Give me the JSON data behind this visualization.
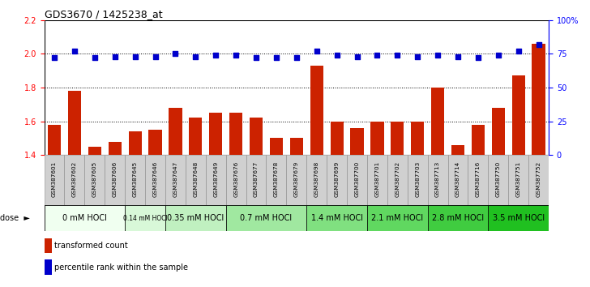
{
  "title": "GDS3670 / 1425238_at",
  "categories": [
    "GSM387601",
    "GSM387602",
    "GSM387605",
    "GSM387606",
    "GSM387645",
    "GSM387646",
    "GSM387647",
    "GSM387648",
    "GSM387649",
    "GSM387676",
    "GSM387677",
    "GSM387678",
    "GSM387679",
    "GSM387698",
    "GSM387699",
    "GSM387700",
    "GSM387701",
    "GSM387702",
    "GSM387703",
    "GSM387713",
    "GSM387714",
    "GSM387716",
    "GSM387750",
    "GSM387751",
    "GSM387752"
  ],
  "bar_values": [
    1.58,
    1.78,
    1.45,
    1.48,
    1.54,
    1.55,
    1.68,
    1.62,
    1.65,
    1.65,
    1.62,
    1.5,
    1.5,
    1.93,
    1.6,
    1.56,
    1.6,
    1.6,
    1.6,
    1.8,
    1.46,
    1.58,
    1.68,
    1.87,
    2.06
  ],
  "percentile_values_pct": [
    72,
    77,
    72,
    73,
    73,
    73,
    75,
    73,
    74,
    74,
    72,
    72,
    72,
    77,
    74,
    73,
    74,
    74,
    73,
    74,
    73,
    72,
    74,
    77,
    82
  ],
  "dose_groups": [
    {
      "label": "0 mM HOCl",
      "start": 0,
      "end": 4,
      "color": "#f0fff0"
    },
    {
      "label": "0.14 mM HOCl",
      "start": 4,
      "end": 6,
      "color": "#d8f8d8"
    },
    {
      "label": "0.35 mM HOCl",
      "start": 6,
      "end": 9,
      "color": "#c0f0c0"
    },
    {
      "label": "0.7 mM HOCl",
      "start": 9,
      "end": 13,
      "color": "#a0e8a0"
    },
    {
      "label": "1.4 mM HOCl",
      "start": 13,
      "end": 16,
      "color": "#80e080"
    },
    {
      "label": "2.1 mM HOCl",
      "start": 16,
      "end": 19,
      "color": "#60d860"
    },
    {
      "label": "2.8 mM HOCl",
      "start": 19,
      "end": 22,
      "color": "#40cc40"
    },
    {
      "label": "3.5 mM HOCl",
      "start": 22,
      "end": 25,
      "color": "#20c020"
    }
  ],
  "bar_color": "#cc2200",
  "percentile_color": "#0000cc",
  "ylim_left": [
    1.4,
    2.2
  ],
  "ylim_right": [
    0,
    100
  ],
  "yticks_left": [
    1.4,
    1.6,
    1.8,
    2.0,
    2.2
  ],
  "yticks_right": [
    0,
    25,
    50,
    75,
    100
  ],
  "yticklabels_right": [
    "0",
    "25",
    "50",
    "75",
    "100%"
  ],
  "dotted_line_values": [
    1.6,
    1.8,
    2.0
  ],
  "background_color": "#ffffff"
}
